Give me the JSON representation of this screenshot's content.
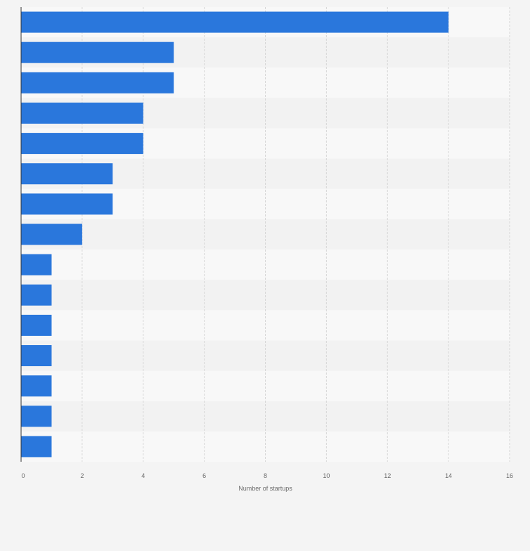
{
  "chart_data": {
    "type": "bar",
    "orientation": "horizontal",
    "categories": [
      "",
      "",
      "",
      "",
      "",
      "",
      "",
      "",
      "",
      "",
      "",
      "",
      "",
      "",
      ""
    ],
    "values": [
      14,
      5,
      5,
      4,
      4,
      3,
      3,
      2,
      1,
      1,
      1,
      1,
      1,
      1,
      1
    ],
    "xlabel": "Number of startups",
    "ylabel": "",
    "xlim": [
      0,
      16
    ],
    "xticks": [
      0,
      2,
      4,
      6,
      8,
      10,
      12,
      14,
      16
    ],
    "grid": true,
    "legend": "none"
  },
  "colors": {
    "bar": "#2a77dc",
    "background": "#f4f4f4",
    "band_light": "#f8f8f8",
    "band_dark": "#f2f2f2",
    "grid": "#d6d6d6",
    "axis": "#333333",
    "tick_text": "#6b6b6b"
  }
}
